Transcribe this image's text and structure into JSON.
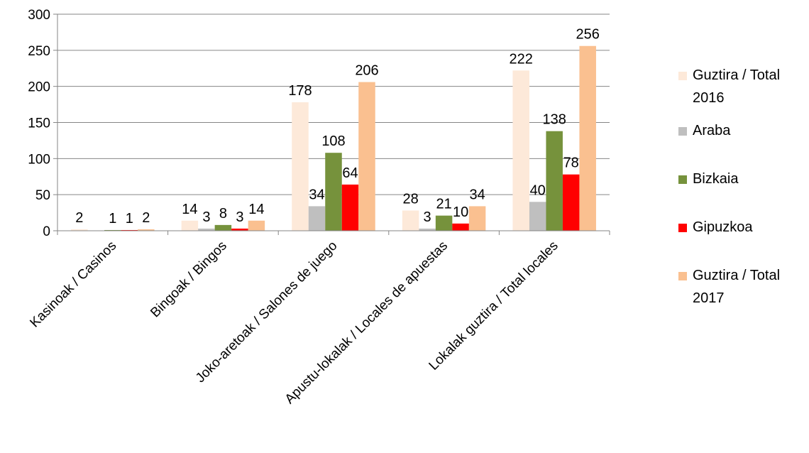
{
  "chart_data": {
    "type": "bar",
    "categories": [
      "Kasinoak  / Casinos",
      "Bingoak / Bingos",
      "Joko-aretoak / Salones  de juego",
      "Apustu-lokalak / Locales de apuestas",
      "Lokalak guztira / Total locales"
    ],
    "series": [
      {
        "name": "Guztira / Total 2016",
        "legend_lines": [
          "Guztira / Total",
          "2016"
        ],
        "color": "#fde9d9",
        "values": [
          2,
          14,
          178,
          28,
          222
        ]
      },
      {
        "name": "Araba",
        "legend_lines": [
          "Araba"
        ],
        "color": "#bfbfbf",
        "values": [
          0,
          3,
          34,
          3,
          40
        ]
      },
      {
        "name": "Bizkaia",
        "legend_lines": [
          "Bizkaia"
        ],
        "color": "#76923c",
        "values": [
          1,
          8,
          108,
          21,
          138
        ]
      },
      {
        "name": "Gipuzkoa",
        "legend_lines": [
          "Gipuzkoa"
        ],
        "color": "#ff0000",
        "values": [
          1,
          3,
          64,
          10,
          78
        ]
      },
      {
        "name": "Guztira / Total 2017",
        "legend_lines": [
          "Guztira / Total",
          "2017"
        ],
        "color": "#fac090",
        "values": [
          2,
          14,
          206,
          34,
          256
        ]
      }
    ],
    "data_labels": [
      [
        "2",
        "14",
        "178",
        "28",
        "222"
      ],
      [
        "",
        "3",
        "34",
        "3",
        "40"
      ],
      [
        "1",
        "8",
        "108",
        "21",
        "138"
      ],
      [
        "1",
        "3",
        "64",
        "10",
        "78"
      ],
      [
        "2",
        "14",
        "206",
        "34",
        "256"
      ]
    ],
    "y_ticks": [
      0,
      50,
      100,
      150,
      200,
      250,
      300
    ],
    "ylim": [
      0,
      300
    ],
    "grid": true,
    "legend_position": "right",
    "title": "",
    "xlabel": "",
    "ylabel": ""
  }
}
